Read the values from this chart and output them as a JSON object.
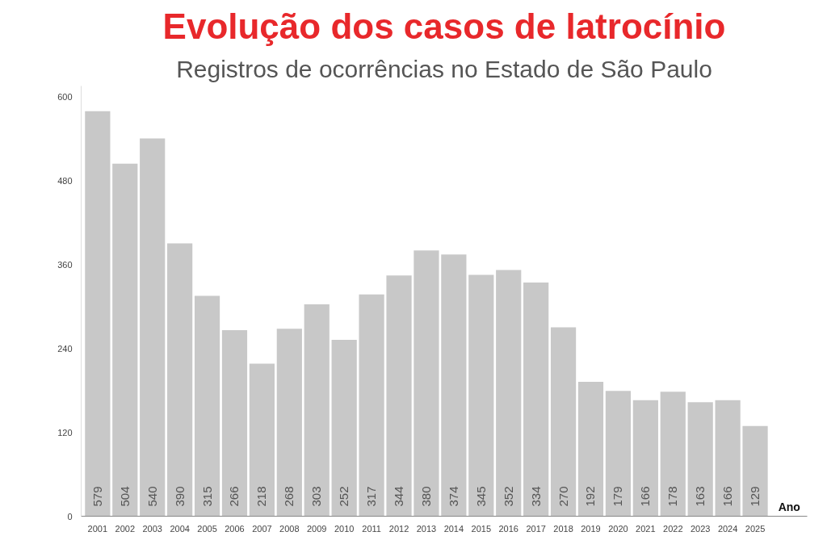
{
  "chart_data": {
    "type": "bar",
    "title": "Evolução dos casos de latrocínio",
    "subtitle": "Registros de ocorrências no Estado de São Paulo",
    "xlabel": "Ano",
    "categories": [
      "2001",
      "2002",
      "2003",
      "2004",
      "2005",
      "2006",
      "2007",
      "2008",
      "2009",
      "2010",
      "2011",
      "2012",
      "2013",
      "2014",
      "2015",
      "2016",
      "2017",
      "2018",
      "2019",
      "2020",
      "2021",
      "2022",
      "2023",
      "2024",
      "2025"
    ],
    "values": [
      579,
      504,
      540,
      390,
      315,
      266,
      218,
      268,
      303,
      252,
      317,
      344,
      380,
      374,
      345,
      352,
      334,
      270,
      192,
      179,
      166,
      178,
      163,
      166,
      129
    ],
    "color": "#c8c8c8",
    "ylim": [
      0,
      615
    ],
    "yticks": [
      0,
      120,
      240,
      360,
      480,
      600
    ],
    "grid": false,
    "data_labels": true
  }
}
